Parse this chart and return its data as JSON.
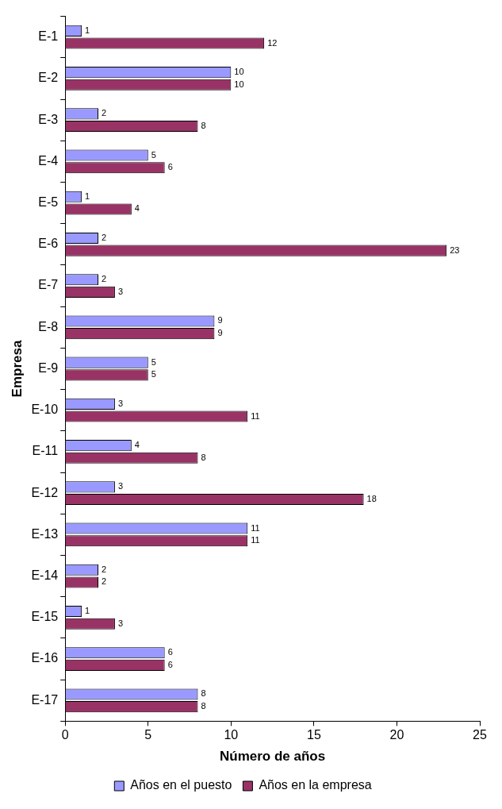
{
  "chart_data": {
    "type": "bar",
    "orientation": "horizontal",
    "xlabel": "Número de años",
    "ylabel": "Empresa",
    "categories": [
      "E-1",
      "E-2",
      "E-3",
      "E-4",
      "E-5",
      "E-6",
      "E-7",
      "E-8",
      "E-9",
      "E-10",
      "E-11",
      "E-12",
      "E-13",
      "E-14",
      "E-15",
      "E-16",
      "E-17"
    ],
    "series": [
      {
        "name": "Años en el puesto",
        "color": "#9999ff",
        "values": [
          1,
          10,
          2,
          5,
          1,
          2,
          2,
          9,
          5,
          3,
          4,
          3,
          11,
          2,
          1,
          6,
          8
        ]
      },
      {
        "name": "Años en la empresa",
        "color": "#993366",
        "values": [
          12,
          10,
          8,
          6,
          4,
          23,
          3,
          9,
          5,
          11,
          8,
          18,
          11,
          2,
          3,
          6,
          8
        ]
      }
    ],
    "xlim": [
      0,
      25
    ],
    "xticks": [
      0,
      5,
      10,
      15,
      20,
      25
    ],
    "grid": false,
    "legend": "bottom",
    "data_labels": true
  }
}
